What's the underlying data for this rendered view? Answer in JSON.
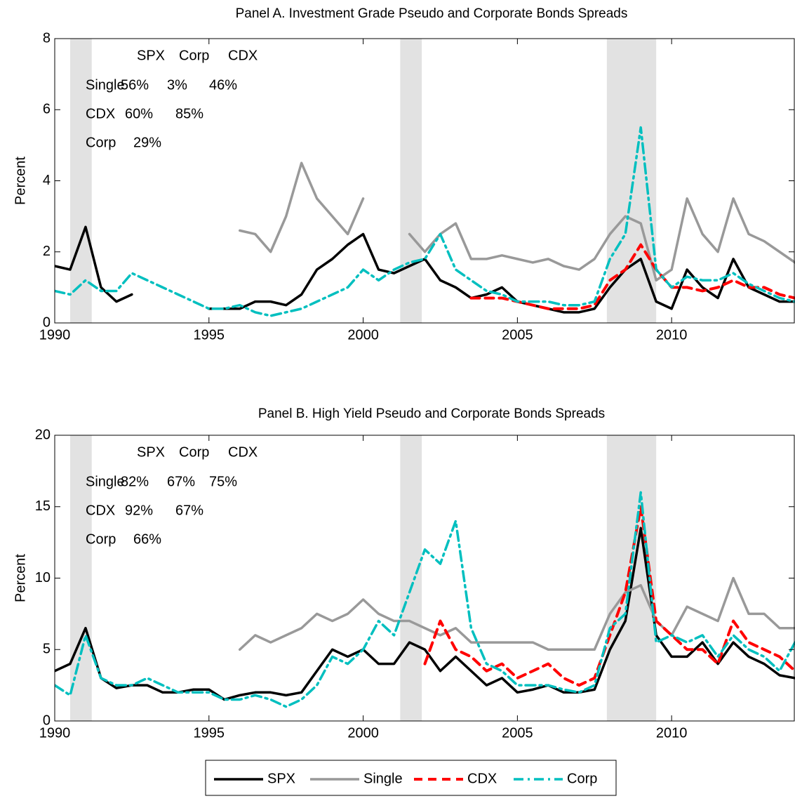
{
  "chart_data": [
    {
      "type": "line",
      "title": "Panel A. Investment Grade Pseudo and Corporate Bonds Spreads",
      "y_label": "Percent",
      "x": [
        1990,
        1990.5,
        1991,
        1991.5,
        1992,
        1992.5,
        1993,
        1993.5,
        1994,
        1994.5,
        1995,
        1995.5,
        1996,
        1996.5,
        1997,
        1997.5,
        1998,
        1998.5,
        1999,
        1999.5,
        2000,
        2000.5,
        2001,
        2001.5,
        2002,
        2002.5,
        2003,
        2003.5,
        2004,
        2004.5,
        2005,
        2005.5,
        2006,
        2006.5,
        2007,
        2007.5,
        2008,
        2008.5,
        2009,
        2009.5,
        2010,
        2010.5,
        2011,
        2011.5,
        2012,
        2012.5,
        2013,
        2013.5,
        2014
      ],
      "xlim": [
        1990,
        2014
      ],
      "xticks": [
        1990,
        1995,
        2000,
        2005,
        2010
      ],
      "ylim": [
        0,
        8
      ],
      "yticks": [
        0,
        2,
        4,
        6,
        8
      ],
      "shaded": [
        [
          1990.5,
          1991.2
        ],
        [
          2001.2,
          2001.9
        ],
        [
          2007.9,
          2009.5
        ]
      ],
      "shade_color": "#e2e2e2",
      "annotation": {
        "header": [
          "SPX",
          "Corp",
          "CDX"
        ],
        "rows": [
          [
            "Single",
            "56%",
            "3%",
            "46%"
          ],
          [
            "CDX",
            "60%",
            "85%"
          ],
          [
            "Corp",
            "29%"
          ]
        ]
      },
      "series": [
        {
          "name": "SPX",
          "color": "#000000",
          "linestyle": "solid",
          "values": [
            1.6,
            1.5,
            2.7,
            1.0,
            0.6,
            0.8,
            null,
            null,
            null,
            null,
            0.4,
            0.4,
            0.4,
            0.6,
            0.6,
            0.5,
            0.8,
            1.5,
            1.8,
            2.2,
            2.5,
            1.5,
            1.4,
            1.6,
            1.8,
            1.2,
            1.0,
            0.7,
            0.8,
            1.0,
            0.6,
            0.5,
            0.4,
            0.3,
            0.3,
            0.4,
            1.0,
            1.5,
            1.8,
            0.6,
            0.4,
            1.5,
            1.0,
            0.7,
            1.8,
            1.0,
            0.8,
            0.6,
            0.6
          ]
        },
        {
          "name": "Single",
          "color": "#999999",
          "linestyle": "solid",
          "values": [
            null,
            null,
            null,
            null,
            null,
            null,
            null,
            null,
            null,
            null,
            null,
            null,
            2.6,
            2.5,
            2.0,
            3.0,
            4.5,
            3.5,
            3.0,
            2.5,
            3.5,
            null,
            null,
            2.5,
            2.0,
            2.5,
            2.8,
            1.8,
            1.8,
            1.9,
            1.8,
            1.7,
            1.8,
            1.6,
            1.5,
            1.8,
            2.5,
            3.0,
            2.8,
            1.2,
            1.5,
            3.5,
            2.5,
            2.0,
            3.5,
            2.5,
            2.3,
            2.0,
            1.7
          ]
        },
        {
          "name": "CDX",
          "color": "#ff0000",
          "linestyle": "dashed",
          "values": [
            null,
            null,
            null,
            null,
            null,
            null,
            null,
            null,
            null,
            null,
            null,
            null,
            null,
            null,
            null,
            null,
            null,
            null,
            null,
            null,
            null,
            null,
            null,
            null,
            null,
            null,
            null,
            0.7,
            0.7,
            0.7,
            0.6,
            0.5,
            0.4,
            0.4,
            0.4,
            0.5,
            1.2,
            1.5,
            2.2,
            1.5,
            1.0,
            1.0,
            0.9,
            1.0,
            1.2,
            1.0,
            1.0,
            0.8,
            0.7
          ]
        },
        {
          "name": "Corp",
          "color": "#00bfbf",
          "linestyle": "dashdot",
          "values": [
            0.9,
            0.8,
            1.2,
            0.9,
            0.9,
            1.4,
            1.2,
            1.0,
            0.8,
            0.6,
            0.4,
            0.4,
            0.5,
            0.3,
            0.2,
            0.3,
            0.4,
            0.6,
            0.8,
            1.0,
            1.5,
            1.2,
            1.5,
            1.7,
            1.8,
            2.5,
            1.5,
            1.2,
            0.9,
            0.8,
            0.6,
            0.6,
            0.6,
            0.5,
            0.5,
            0.6,
            1.8,
            2.5,
            5.5,
            1.5,
            1.0,
            1.3,
            1.2,
            1.2,
            1.4,
            1.1,
            0.9,
            0.7,
            0.6
          ]
        }
      ]
    },
    {
      "type": "line",
      "title": "Panel B. High Yield Pseudo and Corporate Bonds Spreads",
      "y_label": "Percent",
      "x": [
        1990,
        1990.5,
        1991,
        1991.5,
        1992,
        1992.5,
        1993,
        1993.5,
        1994,
        1994.5,
        1995,
        1995.5,
        1996,
        1996.5,
        1997,
        1997.5,
        1998,
        1998.5,
        1999,
        1999.5,
        2000,
        2000.5,
        2001,
        2001.5,
        2002,
        2002.5,
        2003,
        2003.5,
        2004,
        2004.5,
        2005,
        2005.5,
        2006,
        2006.5,
        2007,
        2007.5,
        2008,
        2008.5,
        2009,
        2009.5,
        2010,
        2010.5,
        2011,
        2011.5,
        2012,
        2012.5,
        2013,
        2013.5,
        2014
      ],
      "xlim": [
        1990,
        2014
      ],
      "xticks": [
        1990,
        1995,
        2000,
        2005,
        2010
      ],
      "ylim": [
        0,
        20
      ],
      "yticks": [
        0,
        5,
        10,
        15,
        20
      ],
      "shaded": [
        [
          1990.5,
          1991.2
        ],
        [
          2001.2,
          2001.9
        ],
        [
          2007.9,
          2009.5
        ]
      ],
      "shade_color": "#e2e2e2",
      "annotation": {
        "header": [
          "SPX",
          "Corp",
          "CDX"
        ],
        "rows": [
          [
            "Single",
            "82%",
            "67%",
            "75%"
          ],
          [
            "CDX",
            "92%",
            "67%"
          ],
          [
            "Corp",
            "66%"
          ]
        ]
      },
      "legend": "bottom",
      "series": [
        {
          "name": "SPX",
          "color": "#000000",
          "linestyle": "solid",
          "values": [
            3.5,
            4.0,
            6.5,
            3.0,
            2.3,
            2.5,
            2.5,
            2.0,
            2.0,
            2.2,
            2.2,
            1.5,
            1.8,
            2.0,
            2.0,
            1.8,
            2.0,
            3.5,
            5.0,
            4.5,
            5.0,
            4.0,
            4.0,
            5.5,
            5.0,
            3.5,
            4.5,
            3.5,
            2.5,
            3.0,
            2.0,
            2.2,
            2.5,
            2.0,
            2.0,
            2.2,
            5.0,
            7.0,
            13.5,
            6.0,
            4.5,
            4.5,
            5.5,
            4.0,
            5.5,
            4.5,
            4.0,
            3.2,
            3.0
          ]
        },
        {
          "name": "Single",
          "color": "#999999",
          "linestyle": "solid",
          "values": [
            null,
            null,
            null,
            null,
            null,
            null,
            null,
            null,
            null,
            null,
            null,
            null,
            5.0,
            6.0,
            5.5,
            6.0,
            6.5,
            7.5,
            7.0,
            7.5,
            8.5,
            7.5,
            7.0,
            7.0,
            6.5,
            6.0,
            6.5,
            5.5,
            5.5,
            5.5,
            5.5,
            5.5,
            5.0,
            5.0,
            5.0,
            5.0,
            7.5,
            9.0,
            9.5,
            7.0,
            6.0,
            8.0,
            7.5,
            7.0,
            10.0,
            7.5,
            7.5,
            6.5,
            6.5
          ]
        },
        {
          "name": "CDX",
          "color": "#ff0000",
          "linestyle": "dashed",
          "values": [
            null,
            null,
            null,
            null,
            null,
            null,
            null,
            null,
            null,
            null,
            null,
            null,
            null,
            null,
            null,
            null,
            null,
            null,
            null,
            null,
            null,
            null,
            null,
            null,
            4.0,
            7.0,
            5.0,
            4.5,
            3.5,
            4.0,
            3.0,
            3.5,
            4.0,
            3.0,
            2.5,
            3.0,
            6.0,
            9.0,
            15.0,
            7.0,
            6.0,
            5.0,
            5.0,
            4.0,
            7.0,
            5.5,
            5.0,
            4.5,
            3.5
          ]
        },
        {
          "name": "Corp",
          "color": "#00bfbf",
          "linestyle": "dashdot",
          "values": [
            2.5,
            1.8,
            6.0,
            3.0,
            2.5,
            2.5,
            3.0,
            2.5,
            2.0,
            2.0,
            2.0,
            1.5,
            1.5,
            1.8,
            1.5,
            1.0,
            1.5,
            2.5,
            4.5,
            4.0,
            5.0,
            7.0,
            6.0,
            9.0,
            12.0,
            11.0,
            14.0,
            6.5,
            4.0,
            3.5,
            2.5,
            2.5,
            2.5,
            2.2,
            2.0,
            2.5,
            6.5,
            7.5,
            16.0,
            5.5,
            6.0,
            5.5,
            6.0,
            4.5,
            6.0,
            5.0,
            4.5,
            3.5,
            5.5
          ]
        }
      ]
    }
  ]
}
